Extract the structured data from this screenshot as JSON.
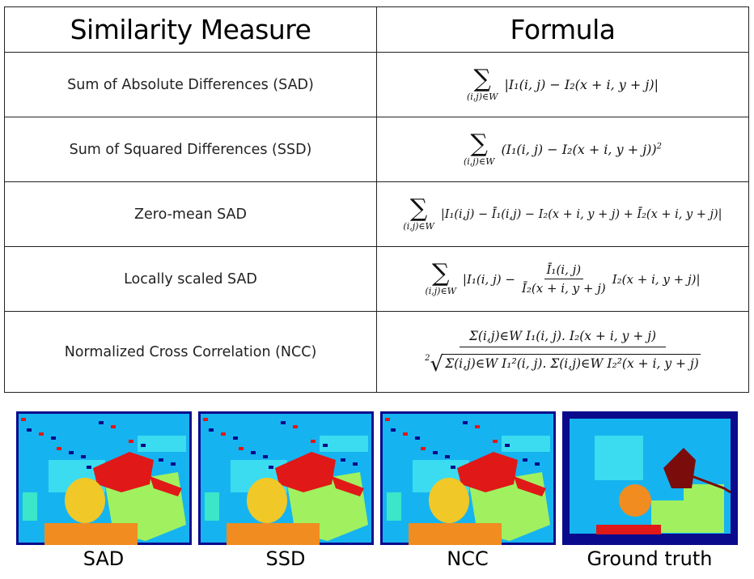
{
  "table": {
    "headers": [
      "Similarity Measure",
      "Formula"
    ],
    "rows": [
      {
        "name": "Sum of Absolute Differences (SAD)"
      },
      {
        "name": "Sum of Squared Differences (SSD)"
      },
      {
        "name": "Zero-mean SAD"
      },
      {
        "name": "Locally scaled SAD"
      },
      {
        "name": "Normalized Cross Correlation (NCC)"
      }
    ]
  },
  "math": {
    "sum_sub": "(i,j)∈W",
    "sad": "|I₁(i, j) − I₂(x + i, y + j)|",
    "ssd": "(I₁(i, j) − I₂(x + i, y + j))",
    "ssd_exp": "2",
    "zsad": "|I₁(i,j) − Ī₁(i,j) − I₂(x + i, y + j) + Ī₂(x + i, y + j)|",
    "lsad_pre": "|I₁(i, j) −",
    "lsad_num": "Ī₁(i, j)",
    "lsad_den": "Ī₂(x + i, y + j)",
    "lsad_post": "I₂(x + i, y + j)|",
    "ncc_num": "Σ(i,j)∈W I₁(i, j). I₂(x + i, y + j)",
    "ncc_root": "2",
    "ncc_den": "Σ(i,j)∈W I₁²(i, j). Σ(i,j)∈W I₂²(x + i, y + j)"
  },
  "figures": [
    {
      "caption": "SAD"
    },
    {
      "caption": "SSD"
    },
    {
      "caption": "NCC"
    },
    {
      "caption": "Ground truth"
    }
  ],
  "colors": {
    "frame": "#0a0a8c",
    "background": "#15b4f0",
    "cyan": "#3cdcf0",
    "teal": "#3ce6c8",
    "green": "#a0f060",
    "yellow": "#f0c828",
    "orange": "#f08c20",
    "red": "#e01818",
    "darkred": "#7a0c0c"
  }
}
